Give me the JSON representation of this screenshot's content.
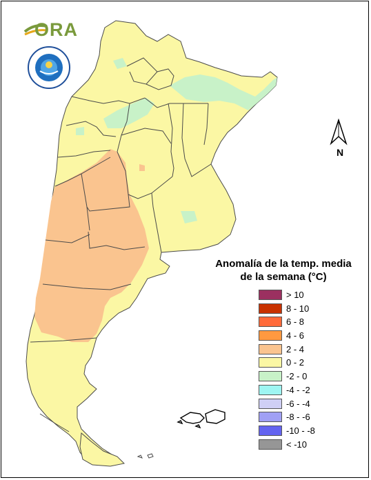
{
  "title": {
    "line1": "Anomalía de la temp. media",
    "line2": "de la semana (°C)"
  },
  "logo": {
    "ora": "ORA"
  },
  "north_label": "N",
  "legend": [
    {
      "label": "> 10",
      "color": "#9b3060"
    },
    {
      "label": "8 - 10",
      "color": "#c83200"
    },
    {
      "label": "6 - 8",
      "color": "#ff6a3a"
    },
    {
      "label": "4 - 6",
      "color": "#ff9940"
    },
    {
      "label": "2 - 4",
      "color": "#fac48f"
    },
    {
      "label": "0 - 2",
      "color": "#fbf7a4"
    },
    {
      "label": "-2 - 0",
      "color": "#c8f2c8"
    },
    {
      "label": "-4 - -2",
      "color": "#9ef5f2"
    },
    {
      "label": "-6 - -4",
      "color": "#cfcff5"
    },
    {
      "label": "-8 - -6",
      "color": "#a0a0f5"
    },
    {
      "label": "-10 - -8",
      "color": "#6464f0"
    },
    {
      "label": "< -10",
      "color": "#969696"
    }
  ],
  "colors": {
    "land": "#fbf7a4",
    "warm": "#fac48f",
    "cool": "#c8f2c8",
    "border": "#4a4a4a"
  }
}
